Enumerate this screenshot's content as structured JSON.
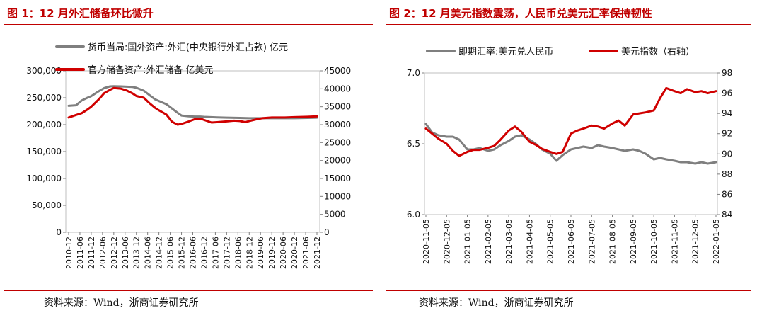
{
  "left": {
    "title": "图 1：12 月外汇储备环比微升",
    "source": "资料来源：Wind，浙商证券研究所"
  },
  "right": {
    "title": "图 2：12 月美元指数震荡，人民币兑美元汇率保持韧性",
    "source": "资料来源：Wind，浙商证券研究所"
  },
  "colors": {
    "accent": "#c00000",
    "gray_series": "#7f7f7f",
    "red_series": "#d00000"
  },
  "chart_data": [
    {
      "type": "line",
      "x_ticks": [
        "2010-12",
        "2011-06",
        "2011-12",
        "2012-06",
        "2012-12",
        "2013-06",
        "2013-12",
        "2014-06",
        "2014-12",
        "2015-06",
        "2015-12",
        "2016-06",
        "2016-12",
        "2017-06",
        "2017-12",
        "2018-06",
        "2018-12",
        "2019-06",
        "2019-12",
        "2020-06",
        "2020-12",
        "2021-06",
        "2021-12"
      ],
      "ylim_left": [
        0,
        300000
      ],
      "yticks_left": [
        "0",
        "50,000",
        "100,000",
        "150,000",
        "200,000",
        "250,000",
        "300,000"
      ],
      "ylim_right": [
        0,
        45000
      ],
      "yticks_right": [
        "0",
        "5000",
        "10000",
        "15000",
        "20000",
        "25000",
        "30000",
        "35000",
        "40000",
        "45000"
      ],
      "legend": "top",
      "series": [
        {
          "name": "货币当局:国外资产:外汇(中央银行外汇占款) 亿元",
          "axis": "left",
          "color": "#7f7f7f",
          "x": [
            2010.92,
            2011.25,
            2011.5,
            2011.75,
            2011.92,
            2012.25,
            2012.5,
            2012.75,
            2012.92,
            2013.25,
            2013.5,
            2013.75,
            2013.92,
            2014.25,
            2014.5,
            2014.75,
            2014.92,
            2015.25,
            2015.5,
            2015.75,
            2015.92,
            2016.25,
            2016.5,
            2016.75,
            2016.92,
            2017.5,
            2017.92,
            2018.5,
            2018.92,
            2019.5,
            2019.92,
            2020.5,
            2020.92,
            2021.5,
            2021.92
          ],
          "y": [
            235000,
            236000,
            245000,
            250000,
            253000,
            262000,
            268000,
            271000,
            271500,
            271000,
            270500,
            270000,
            268500,
            263000,
            255000,
            247000,
            244000,
            238000,
            230000,
            222000,
            217000,
            215500,
            215000,
            215000,
            214500,
            213500,
            213000,
            212500,
            212000,
            212000,
            212000,
            212000,
            212000,
            212500,
            213000
          ]
        },
        {
          "name": "官方储备资产:外汇储备 亿美元",
          "axis": "right",
          "color": "#d00000",
          "x": [
            2010.92,
            2011.25,
            2011.5,
            2011.75,
            2011.92,
            2012.25,
            2012.5,
            2012.75,
            2012.92,
            2013.25,
            2013.5,
            2013.75,
            2013.92,
            2014.25,
            2014.5,
            2014.75,
            2014.92,
            2015.25,
            2015.5,
            2015.75,
            2015.92,
            2016.25,
            2016.5,
            2016.75,
            2016.92,
            2017.25,
            2017.5,
            2017.92,
            2018.25,
            2018.5,
            2018.75,
            2018.92,
            2019.25,
            2019.5,
            2019.92,
            2020.5,
            2020.92,
            2021.5,
            2021.92
          ],
          "y": [
            32000,
            32700,
            33200,
            34200,
            35000,
            37000,
            38800,
            39700,
            40200,
            40000,
            39500,
            38700,
            38000,
            37500,
            36000,
            34700,
            34000,
            32800,
            30800,
            30000,
            30200,
            30900,
            31500,
            31700,
            31300,
            30600,
            30700,
            30900,
            31100,
            31000,
            30700,
            31000,
            31500,
            31800,
            32000,
            32000,
            32100,
            32200,
            32300
          ]
        }
      ]
    },
    {
      "type": "line",
      "x_ticks": [
        "2020-11-05",
        "2020-12-05",
        "2021-01-05",
        "2021-02-05",
        "2021-03-05",
        "2021-04-05",
        "2021-05-05",
        "2021-06-05",
        "2021-07-05",
        "2021-08-05",
        "2021-09-05",
        "2021-10-05",
        "2021-11-05",
        "2021-12-05",
        "2022-01-05"
      ],
      "ylim_left": [
        6.0,
        7.0
      ],
      "yticks_left": [
        "6.0",
        "6.5",
        "7.0"
      ],
      "ylim_right": [
        84,
        98
      ],
      "yticks_right": [
        "84",
        "86",
        "88",
        "90",
        "92",
        "94",
        "96",
        "98"
      ],
      "legend": "top",
      "series": [
        {
          "name": "即期汇率:美元兑人民币",
          "axis": "left",
          "color": "#7f7f7f",
          "x": [
            0,
            0.3,
            0.6,
            1,
            1.3,
            1.6,
            2,
            2.3,
            2.6,
            3,
            3.3,
            3.6,
            4,
            4.3,
            4.6,
            5,
            5.3,
            5.6,
            6,
            6.3,
            6.6,
            7,
            7.3,
            7.6,
            8,
            8.3,
            8.6,
            9,
            9.3,
            9.6,
            10,
            10.3,
            10.6,
            11,
            11.3,
            11.6,
            12,
            12.3,
            12.6,
            13,
            13.3,
            13.6,
            14
          ],
          "y": [
            6.64,
            6.58,
            6.56,
            6.55,
            6.55,
            6.53,
            6.46,
            6.46,
            6.47,
            6.45,
            6.46,
            6.49,
            6.52,
            6.55,
            6.56,
            6.53,
            6.5,
            6.46,
            6.43,
            6.38,
            6.42,
            6.46,
            6.47,
            6.48,
            6.47,
            6.49,
            6.48,
            6.47,
            6.46,
            6.45,
            6.46,
            6.45,
            6.43,
            6.39,
            6.4,
            6.39,
            6.38,
            6.37,
            6.37,
            6.36,
            6.37,
            6.36,
            6.37
          ]
        },
        {
          "name": "美元指数（右轴）",
          "axis": "right",
          "color": "#d00000",
          "x": [
            0,
            0.3,
            0.6,
            1,
            1.3,
            1.6,
            2,
            2.3,
            2.6,
            3,
            3.3,
            3.6,
            4,
            4.3,
            4.6,
            5,
            5.3,
            5.6,
            6,
            6.3,
            6.6,
            7,
            7.3,
            7.6,
            8,
            8.3,
            8.6,
            9,
            9.3,
            9.6,
            10,
            10.3,
            10.6,
            11,
            11.3,
            11.6,
            12,
            12.3,
            12.6,
            13,
            13.3,
            13.6,
            14
          ],
          "y": [
            92.5,
            92,
            91.5,
            91,
            90.3,
            89.8,
            90.2,
            90.4,
            90.4,
            90.6,
            90.8,
            91.4,
            92.3,
            92.7,
            92.2,
            91.2,
            90.9,
            90.5,
            90.2,
            90,
            90.2,
            92,
            92.3,
            92.5,
            92.8,
            92.7,
            92.5,
            93,
            93.3,
            92.8,
            93.9,
            94,
            94.1,
            94.3,
            95.5,
            96.5,
            96.2,
            96,
            96.4,
            96.1,
            96.2,
            96,
            96.2
          ]
        }
      ]
    }
  ]
}
